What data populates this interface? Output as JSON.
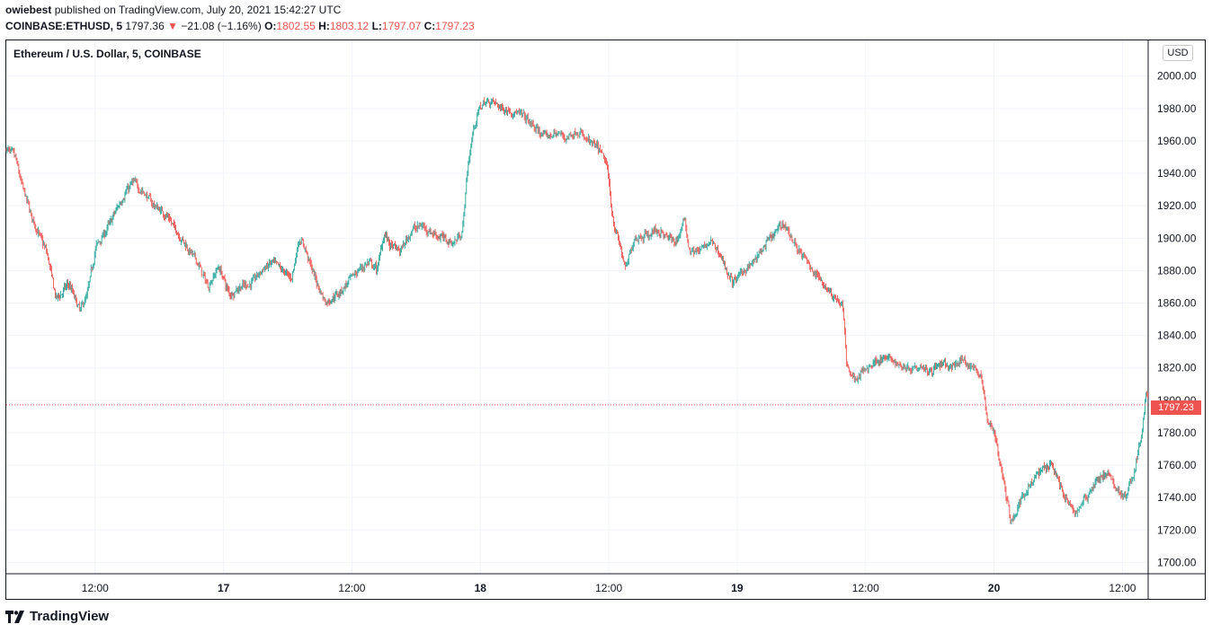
{
  "header": {
    "user": "owiebest",
    "published_text": "published on TradingView.com, July 20, 2021 15:42:27 UTC",
    "symbol": "COINBASE:ETHUSD, 5",
    "last": "1797.36",
    "change": "−21.08 (−1.16%)",
    "o_label": "O:",
    "o_value": "1802.55",
    "h_label": "H:",
    "h_value": "1803.12",
    "l_label": "L:",
    "l_value": "1797.07",
    "c_label": "C:",
    "c_value": "1797.23"
  },
  "legend_title": "Ethereum / U.S. Dollar, 5, COINBASE",
  "currency_button": "USD",
  "current_price_tag": "1797.23",
  "brand": "TradingView",
  "colors": {
    "up": "#26a69a",
    "down": "#ef5350",
    "grid": "#f0f3fa",
    "text": "#131722"
  },
  "chart_data": {
    "type": "candlestick",
    "y_ticks": [
      1700,
      1720,
      1740,
      1760,
      1780,
      1800,
      1820,
      1840,
      1860,
      1880,
      1900,
      1920,
      1940,
      1960,
      1980,
      2000
    ],
    "y_tick_labels": [
      "1700.00",
      "1720.00",
      "1740.00",
      "1760.00",
      "1780.00",
      "1800.00",
      "1820.00",
      "1840.00",
      "1860.00",
      "1880.00",
      "1900.00",
      "1920.00",
      "1940.00",
      "1960.00",
      "1980.00",
      "2000.00"
    ],
    "x_tick_labels": [
      "12:00",
      "17",
      "12:00",
      "18",
      "12:00",
      "19",
      "12:00",
      "20",
      "12:00"
    ],
    "x_tick_hours": [
      12,
      24,
      36,
      48,
      60,
      72,
      84,
      96,
      108
    ],
    "ylim": [
      1693,
      2022
    ],
    "x_range_hours": [
      3.7,
      110.4
    ],
    "last_price": 1797.23,
    "price_path": [
      [
        3.7,
        1955
      ],
      [
        4.5,
        1950
      ],
      [
        5.0,
        1935
      ],
      [
        6.2,
        1910
      ],
      [
        7.5,
        1890
      ],
      [
        8.3,
        1862
      ],
      [
        9.5,
        1872
      ],
      [
        10.5,
        1855
      ],
      [
        11.2,
        1865
      ],
      [
        12.0,
        1895
      ],
      [
        13.0,
        1905
      ],
      [
        14.5,
        1925
      ],
      [
        15.5,
        1935
      ],
      [
        16.5,
        1928
      ],
      [
        17.5,
        1920
      ],
      [
        18.5,
        1915
      ],
      [
        19.5,
        1905
      ],
      [
        20.5,
        1895
      ],
      [
        21.5,
        1885
      ],
      [
        22.5,
        1870
      ],
      [
        23.5,
        1883
      ],
      [
        24.5,
        1865
      ],
      [
        25.5,
        1870
      ],
      [
        26.5,
        1872
      ],
      [
        27.5,
        1880
      ],
      [
        28.5,
        1885
      ],
      [
        29.5,
        1880
      ],
      [
        30.3,
        1875
      ],
      [
        31.0,
        1900
      ],
      [
        31.5,
        1895
      ],
      [
        32.5,
        1875
      ],
      [
        33.5,
        1860
      ],
      [
        34.5,
        1865
      ],
      [
        35.5,
        1872
      ],
      [
        36.5,
        1880
      ],
      [
        37.5,
        1885
      ],
      [
        38.3,
        1880
      ],
      [
        39.0,
        1905
      ],
      [
        39.5,
        1895
      ],
      [
        40.5,
        1892
      ],
      [
        41.5,
        1905
      ],
      [
        42.5,
        1908
      ],
      [
        43.5,
        1903
      ],
      [
        44.5,
        1900
      ],
      [
        45.5,
        1897
      ],
      [
        46.3,
        1905
      ],
      [
        46.7,
        1940
      ],
      [
        47.3,
        1968
      ],
      [
        48.0,
        1982
      ],
      [
        49.0,
        1985
      ],
      [
        50.0,
        1980
      ],
      [
        51.0,
        1978
      ],
      [
        52.0,
        1975
      ],
      [
        53.0,
        1968
      ],
      [
        54.0,
        1962
      ],
      [
        55.0,
        1965
      ],
      [
        56.0,
        1962
      ],
      [
        57.0,
        1966
      ],
      [
        58.0,
        1960
      ],
      [
        59.0,
        1955
      ],
      [
        59.8,
        1945
      ],
      [
        60.3,
        1912
      ],
      [
        61.0,
        1895
      ],
      [
        61.5,
        1880
      ],
      [
        62.3,
        1900
      ],
      [
        63.5,
        1902
      ],
      [
        64.5,
        1905
      ],
      [
        65.5,
        1900
      ],
      [
        66.3,
        1898
      ],
      [
        67.0,
        1912
      ],
      [
        67.5,
        1893
      ],
      [
        68.5,
        1892
      ],
      [
        69.5,
        1898
      ],
      [
        70.5,
        1888
      ],
      [
        71.5,
        1872
      ],
      [
        72.5,
        1880
      ],
      [
        73.5,
        1885
      ],
      [
        74.5,
        1895
      ],
      [
        75.5,
        1903
      ],
      [
        76.3,
        1910
      ],
      [
        77.0,
        1900
      ],
      [
        78.0,
        1890
      ],
      [
        79.0,
        1880
      ],
      [
        80.0,
        1872
      ],
      [
        81.0,
        1864
      ],
      [
        81.8,
        1858
      ],
      [
        82.2,
        1820
      ],
      [
        83.0,
        1812
      ],
      [
        84.0,
        1820
      ],
      [
        85.0,
        1825
      ],
      [
        86.0,
        1826
      ],
      [
        87.0,
        1822
      ],
      [
        88.0,
        1820
      ],
      [
        89.0,
        1822
      ],
      [
        90.0,
        1818
      ],
      [
        91.0,
        1822
      ],
      [
        92.0,
        1820
      ],
      [
        93.0,
        1825
      ],
      [
        94.0,
        1820
      ],
      [
        94.8,
        1815
      ],
      [
        95.2,
        1790
      ],
      [
        96.0,
        1780
      ],
      [
        96.5,
        1760
      ],
      [
        97.0,
        1745
      ],
      [
        97.5,
        1725
      ],
      [
        98.0,
        1730
      ],
      [
        98.5,
        1740
      ],
      [
        99.5,
        1750
      ],
      [
        100.5,
        1758
      ],
      [
        101.3,
        1762
      ],
      [
        102.0,
        1750
      ],
      [
        102.5,
        1740
      ],
      [
        103.5,
        1730
      ],
      [
        104.5,
        1740
      ],
      [
        105.5,
        1750
      ],
      [
        106.5,
        1755
      ],
      [
        107.5,
        1745
      ],
      [
        108.3,
        1740
      ],
      [
        109.0,
        1755
      ],
      [
        109.8,
        1780
      ],
      [
        110.2,
        1808
      ],
      [
        110.4,
        1797
      ]
    ]
  }
}
